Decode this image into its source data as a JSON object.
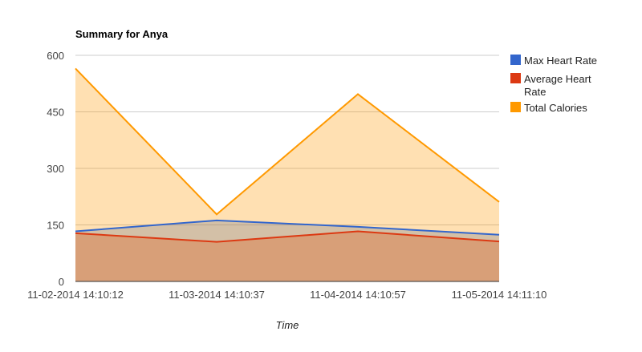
{
  "chart_data": {
    "type": "area",
    "title": "Summary for Anya",
    "xlabel": "Time",
    "ylabel": "",
    "ylim": [
      0,
      600
    ],
    "yticks": [
      "0",
      "150",
      "300",
      "450",
      "600"
    ],
    "categories": [
      "11-02-2014 14:10:12",
      "11-03-2014 14:10:37",
      "11-04-2014 14:10:57",
      "11-05-2014 14:11:10"
    ],
    "series": [
      {
        "name": "Max Heart Rate",
        "color": "#3366cc",
        "values": [
          133,
          162,
          145,
          124
        ]
      },
      {
        "name": "Average Heart Rate",
        "color": "#dc3912",
        "values": [
          128,
          105,
          133,
          106
        ]
      },
      {
        "name": "Total Calories",
        "color": "#ff9900",
        "values": [
          565,
          178,
          497,
          211
        ]
      }
    ],
    "legend": {
      "position": "right",
      "entries": [
        {
          "lines": [
            "Max Heart Rate"
          ]
        },
        {
          "lines": [
            "Average Heart",
            "Rate"
          ]
        },
        {
          "lines": [
            "Total Calories"
          ]
        }
      ]
    },
    "grid": true
  }
}
